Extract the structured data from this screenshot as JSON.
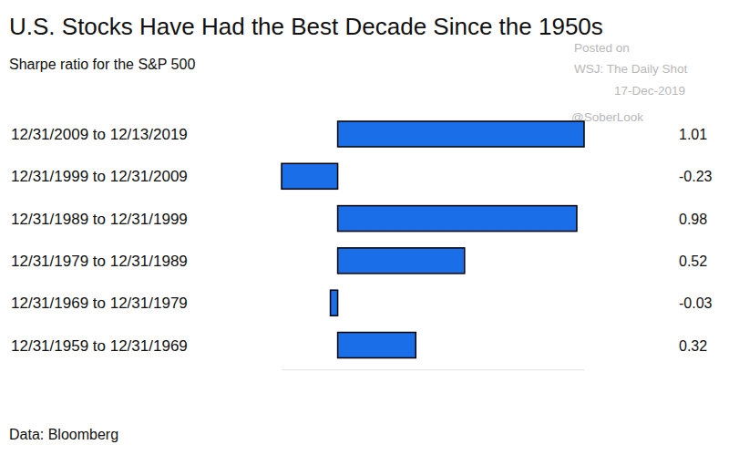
{
  "chart_data": {
    "type": "bar",
    "orientation": "horizontal",
    "title": "U.S. Stocks Have Had the Best Decade Since the 1950s",
    "subtitle": "Sharpe ratio for the S&P 500",
    "source": "Data: Bloomberg",
    "annotations": [
      "Posted on",
      "WSJ: The Daily Shot",
      "17-Dec-2019",
      "@SoberLook"
    ],
    "categories": [
      "12/31/2009 to 12/13/2019",
      "12/31/1999 to 12/31/2009",
      "12/31/1989 to 12/31/1999",
      "12/31/1979 to 12/31/1989",
      "12/31/1969 to 12/31/1979",
      "12/31/1959 to 12/31/1969"
    ],
    "values": [
      1.01,
      -0.23,
      0.98,
      0.52,
      -0.03,
      0.32
    ],
    "color": "#1a6fe8",
    "xlim": [
      -0.23,
      1.01
    ],
    "data_labels": true,
    "tick_labels": "y",
    "grid": false
  }
}
